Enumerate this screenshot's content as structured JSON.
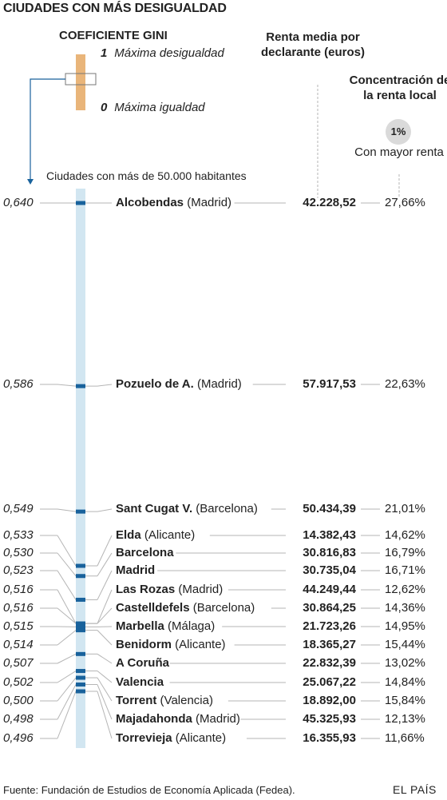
{
  "title": "CIUDADES CON MÁS DESIGUALDAD",
  "legend": {
    "title": "COEFICIENTE GINI",
    "max_value": "1",
    "max_label": "Máxima desigualdad",
    "min_value": "0",
    "min_label": "Máxima igualdad"
  },
  "columns": {
    "renta": "Renta media por declarante (euros)",
    "concentracion": "Concentración de la renta local",
    "badge": "1%",
    "badge_sub": "Con mayor renta"
  },
  "subtitle": "Ciudades con más de 50.000 habitantes",
  "colors": {
    "bar": "#d2e6f1",
    "mark": "#19629c",
    "legend_bar": "#e9b57a",
    "arrow": "#19629c",
    "leader": "#b5b5b5"
  },
  "chart_data": {
    "type": "table",
    "gini_scale": [
      0,
      1
    ],
    "rows": [
      {
        "gini": "0,640",
        "gini_value": 0.64,
        "city": "Alcobendas",
        "region": "(Madrid)",
        "renta": "42.228,52",
        "conc": "27,66%"
      },
      {
        "gini": "0,586",
        "gini_value": 0.586,
        "city": "Pozuelo de A.",
        "region": "(Madrid)",
        "renta": "57.917,53",
        "conc": "22,63%"
      },
      {
        "gini": "0,549",
        "gini_value": 0.549,
        "city": "Sant Cugat V.",
        "region": "(Barcelona)",
        "renta": "50.434,39",
        "conc": "21,01%"
      },
      {
        "gini": "0,533",
        "gini_value": 0.533,
        "city": "Elda",
        "region": "(Alicante)",
        "renta": "14.382,43",
        "conc": "14,62%"
      },
      {
        "gini": "0,530",
        "gini_value": 0.53,
        "city": "Barcelona",
        "region": "",
        "renta": "30.816,83",
        "conc": "16,79%"
      },
      {
        "gini": "0,523",
        "gini_value": 0.523,
        "city": "Madrid",
        "region": "",
        "renta": "30.735,04",
        "conc": "16,71%"
      },
      {
        "gini": "0,516",
        "gini_value": 0.516,
        "city": "Las Rozas",
        "region": "(Madrid)",
        "renta": "44.249,44",
        "conc": "12,62%"
      },
      {
        "gini": "0,516",
        "gini_value": 0.516,
        "city": "Castelldefels",
        "region": "(Barcelona)",
        "renta": "30.864,25",
        "conc": "14,36%"
      },
      {
        "gini": "0,515",
        "gini_value": 0.515,
        "city": "Marbella",
        "region": "(Málaga)",
        "renta": "21.723,26",
        "conc": "14,95%"
      },
      {
        "gini": "0,514",
        "gini_value": 0.514,
        "city": "Benidorm",
        "region": "(Alicante)",
        "renta": "18.365,27",
        "conc": "15,44%"
      },
      {
        "gini": "0,507",
        "gini_value": 0.507,
        "city": "A Coruña",
        "region": "",
        "renta": "22.832,39",
        "conc": "13,02%"
      },
      {
        "gini": "0,502",
        "gini_value": 0.502,
        "city": "Valencia",
        "region": "",
        "renta": "25.067,22",
        "conc": "14,84%"
      },
      {
        "gini": "0,500",
        "gini_value": 0.5,
        "city": "Torrent",
        "region": "(Valencia)",
        "renta": "18.892,00",
        "conc": "15,84%"
      },
      {
        "gini": "0,498",
        "gini_value": 0.498,
        "city": "Majadahonda",
        "region": "(Madrid)",
        "renta": "45.325,93",
        "conc": "12,13%"
      },
      {
        "gini": "0,496",
        "gini_value": 0.496,
        "city": "Torrevieja",
        "region": "(Alicante)",
        "renta": "16.355,93",
        "conc": "11,66%"
      }
    ]
  },
  "source": "Fuente: Fundación de Estudios de Economía Aplicada (Fedea).",
  "brand": "EL PAÍS"
}
